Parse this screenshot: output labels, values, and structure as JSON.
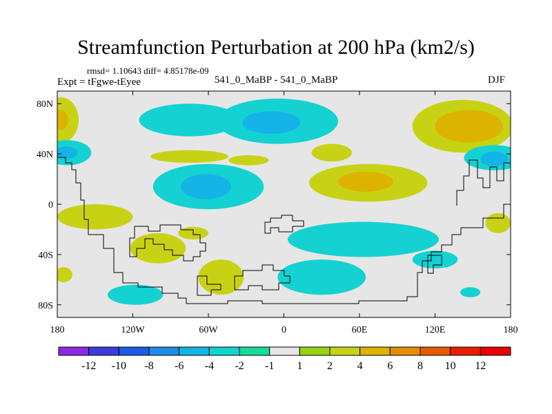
{
  "header": {
    "title": "Streamfunction Perturbation at 200 hPa (km2/s)",
    "stats": "rmsd= 1.10643 diff= 4.85178e-09",
    "experiment": "Expt = tFgwe-tEyee",
    "cases": "541_0_MaBP - 541_0_MaBP",
    "season": "DJF"
  },
  "chart_data": {
    "type": "heatmap",
    "title": "Streamfunction Perturbation at 200 hPa (km2/s)",
    "xlabel": "",
    "ylabel": "",
    "xlim": [
      -180,
      180
    ],
    "ylim": [
      -90,
      90
    ],
    "x_ticks": [
      {
        "value": -180,
        "label": "180"
      },
      {
        "value": -120,
        "label": "120W"
      },
      {
        "value": -60,
        "label": "60W"
      },
      {
        "value": 0,
        "label": "0"
      },
      {
        "value": 60,
        "label": "60E"
      },
      {
        "value": 120,
        "label": "120E"
      },
      {
        "value": 180,
        "label": "180"
      }
    ],
    "y_ticks": [
      {
        "value": 80,
        "label": "80N"
      },
      {
        "value": 40,
        "label": "40N"
      },
      {
        "value": 0,
        "label": "0"
      },
      {
        "value": -40,
        "label": "40S"
      },
      {
        "value": -80,
        "label": "80S"
      }
    ],
    "colorbar": {
      "levels": [
        "-12",
        "-10",
        "-8",
        "-6",
        "-4",
        "-2",
        "-1",
        "1",
        "2",
        "4",
        "6",
        "8",
        "10",
        "12"
      ],
      "colors": [
        "#8a2be2",
        "#3c3cdc",
        "#1e5ae6",
        "#1e8ce6",
        "#14b4e6",
        "#14d2d2",
        "#14dc96",
        "#e6e6e6",
        "#96d214",
        "#c8d214",
        "#dcb400",
        "#e68c00",
        "#e65a00",
        "#e61e00",
        "#e60000"
      ]
    },
    "regions": [
      {
        "name": "tropical-ne-pacific",
        "level": "-2",
        "lon": -75,
        "lat": 67,
        "rx": 40,
        "ry": 13
      },
      {
        "name": "north-atlantic",
        "level": "-2",
        "lon": -5,
        "lat": 66,
        "rx": 48,
        "ry": 18
      },
      {
        "name": "north-atlantic-core",
        "level": "-4",
        "lon": -10,
        "lat": 65,
        "rx": 23,
        "ry": 9
      },
      {
        "name": "central-asia-n",
        "level": "2",
        "lon": 142,
        "lat": 62,
        "rx": 40,
        "ry": 21
      },
      {
        "name": "central-asia-core",
        "level": "4",
        "lon": 147,
        "lat": 62,
        "rx": 27,
        "ry": 13
      },
      {
        "name": "nw-pacific-edge",
        "level": "2",
        "lon": -177,
        "lat": 67,
        "rx": 14,
        "ry": 18
      },
      {
        "name": "nw-pacific-core",
        "level": "4",
        "lon": -178,
        "lat": 67,
        "rx": 7,
        "ry": 8
      },
      {
        "name": "ne-pacific-40n",
        "level": "-2",
        "lon": -172,
        "lat": 41,
        "rx": 19,
        "ry": 10
      },
      {
        "name": "ne-pacific-40n-core",
        "level": "-4",
        "lon": -173,
        "lat": 41,
        "rx": 9,
        "ry": 5
      },
      {
        "name": "east-asia-40n",
        "level": "-2",
        "lon": 167,
        "lat": 37,
        "rx": 24,
        "ry": 10
      },
      {
        "name": "east-asia-40n-core",
        "level": "-4",
        "lon": 167,
        "lat": 36,
        "rx": 11,
        "ry": 6
      },
      {
        "name": "subtrop-atl-band",
        "level": "2",
        "lon": -75,
        "lat": 38,
        "rx": 31,
        "ry": 5
      },
      {
        "name": "subtrop-atl-band-2",
        "level": "2",
        "lon": -28,
        "lat": 35,
        "rx": 16,
        "ry": 4
      },
      {
        "name": "mideast-patch",
        "level": "2",
        "lon": 38,
        "lat": 41,
        "rx": 16,
        "ry": 7
      },
      {
        "name": "atlantic-trop",
        "level": "-2",
        "lon": -60,
        "lat": 14,
        "rx": 44,
        "ry": 18
      },
      {
        "name": "atlantic-trop-core",
        "level": "-4",
        "lon": -62,
        "lat": 14,
        "rx": 20,
        "ry": 10
      },
      {
        "name": "indian-trop",
        "level": "2",
        "lon": 67,
        "lat": 17,
        "rx": 47,
        "ry": 15
      },
      {
        "name": "indian-trop-core",
        "level": "4",
        "lon": 65,
        "lat": 18,
        "rx": 22,
        "ry": 8
      },
      {
        "name": "pacific-eq",
        "level": "2",
        "lon": -150,
        "lat": -10,
        "rx": 30,
        "ry": 10
      },
      {
        "name": "indian-south-band",
        "level": "-2",
        "lon": 63,
        "lat": -28,
        "rx": 60,
        "ry": 14
      },
      {
        "name": "s-africa",
        "level": "-2",
        "lon": 30,
        "lat": -58,
        "rx": 35,
        "ry": 14
      },
      {
        "name": "s-america-west",
        "level": "2",
        "lon": -100,
        "lat": -35,
        "rx": 22,
        "ry": 12
      },
      {
        "name": "s-atlantic-s",
        "level": "2",
        "lon": -50,
        "lat": -58,
        "rx": 18,
        "ry": 14
      },
      {
        "name": "s-pacific-s",
        "level": "-2",
        "lon": -118,
        "lat": -72,
        "rx": 22,
        "ry": 8
      },
      {
        "name": "se-pacific-edge",
        "level": "2",
        "lon": -175,
        "lat": -56,
        "rx": 7,
        "ry": 6
      },
      {
        "name": "s-pacific-patch",
        "level": "2",
        "lon": -72,
        "lat": -23,
        "rx": 12,
        "ry": 5
      },
      {
        "name": "w-australia",
        "level": "-2",
        "lon": 148,
        "lat": -70,
        "rx": 8,
        "ry": 4
      },
      {
        "name": "e-indian-s",
        "level": "-2",
        "lon": 120,
        "lat": -44,
        "rx": 18,
        "ry": 7
      },
      {
        "name": "australia-patch",
        "level": "2",
        "lon": 170,
        "lat": -15,
        "rx": 10,
        "ry": 8
      }
    ]
  }
}
